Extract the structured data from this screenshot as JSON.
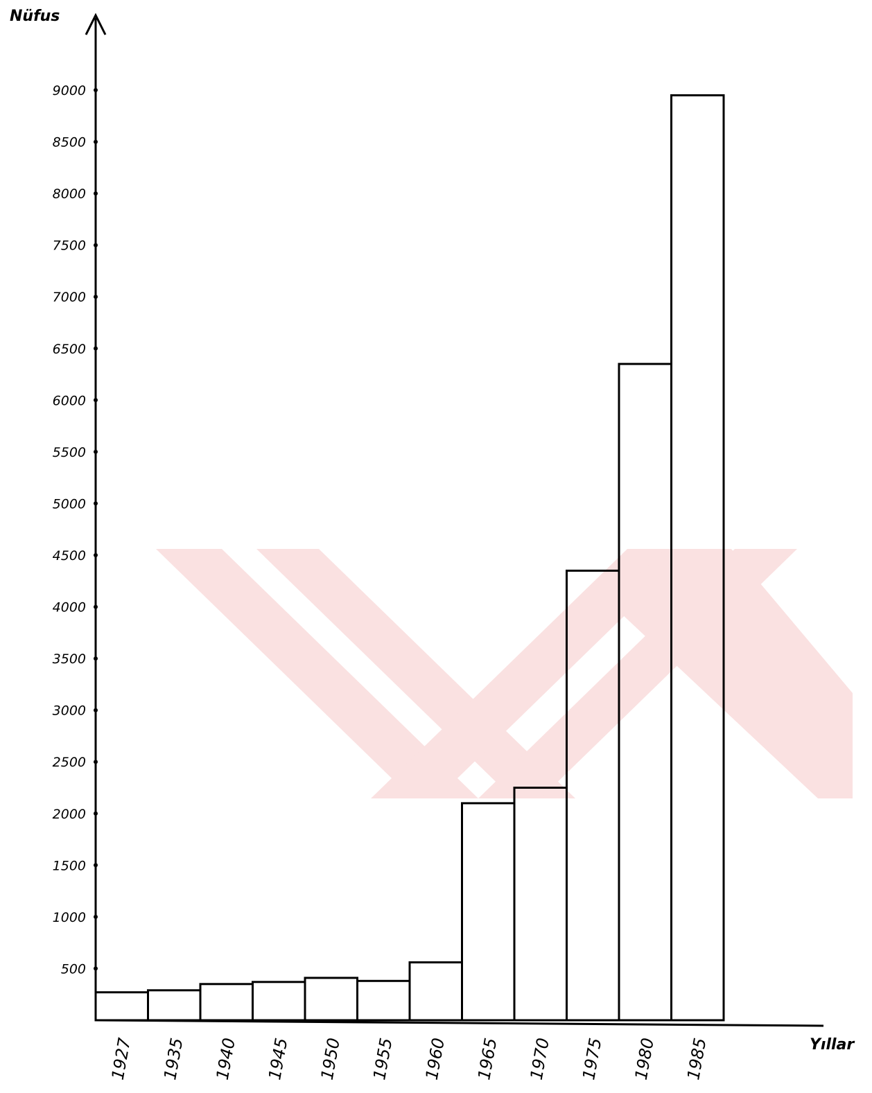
{
  "chart_data": {
    "type": "bar",
    "title": "",
    "xlabel": "Yıllar",
    "ylabel": "Nüfus",
    "categories": [
      "1927",
      "1935",
      "1940",
      "1945",
      "1950",
      "1955",
      "1960",
      "1965",
      "1970",
      "1975",
      "1980",
      "1985"
    ],
    "values": [
      270,
      290,
      350,
      370,
      410,
      380,
      560,
      2100,
      2250,
      4350,
      6350,
      8950
    ],
    "yticks": [
      500,
      1000,
      1500,
      2000,
      2500,
      3000,
      3500,
      4000,
      4500,
      5000,
      5500,
      6000,
      6500,
      7000,
      7500,
      8000,
      8500,
      9000
    ],
    "ylim": [
      0,
      9000
    ],
    "grid": false,
    "legend": "none"
  },
  "colors": {
    "ink": "#000000",
    "background": "#ffffff",
    "watermark": "#f6c9c9"
  },
  "icons": {
    "y_axis_arrow": "arrow-up-icon",
    "watermark": "yok-logo-watermark"
  }
}
